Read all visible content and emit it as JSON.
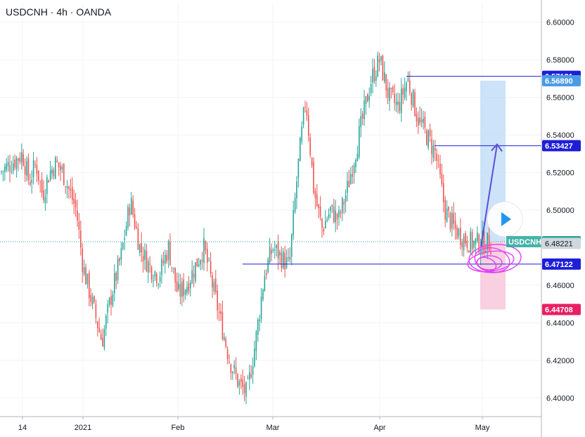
{
  "chart_data": {
    "type": "candlestick",
    "title": "USDCNH · 4h · OANDA",
    "ylim": [
      6.39,
      6.61
    ],
    "y_ticks": [
      "6.60000",
      "6.58000",
      "6.56000",
      "6.54000",
      "6.52000",
      "6.50000",
      "6.46000",
      "6.44000",
      "6.42000",
      "6.40000"
    ],
    "x_ticks": [
      "14",
      "2021",
      "Feb",
      "Mar",
      "Apr",
      "May"
    ],
    "colors": {
      "up": "#26a69a",
      "down": "#ef5350",
      "line": "#1e1ed8",
      "long_target": "#bbd9f7",
      "long_stop": "#f8c4d8",
      "scribble": "#e040fb"
    },
    "close_path": [
      [
        "14",
        6.53
      ],
      [
        "",
        6.515
      ],
      [
        "",
        6.525
      ],
      [
        "",
        6.508
      ],
      [
        "",
        6.52
      ],
      [
        "",
        6.525
      ],
      [
        "",
        6.52
      ],
      [
        "",
        6.51
      ],
      [
        "",
        6.5
      ],
      [
        "2021",
        6.47
      ],
      [
        "",
        6.45
      ],
      [
        "",
        6.43
      ],
      [
        "",
        6.455
      ],
      [
        "",
        6.475
      ],
      [
        "",
        6.505
      ],
      [
        "",
        6.48
      ],
      [
        "",
        6.47
      ],
      [
        "",
        6.465
      ],
      [
        "",
        6.48
      ],
      [
        "Feb",
        6.455
      ],
      [
        "",
        6.46
      ],
      [
        "",
        6.47
      ],
      [
        "",
        6.48
      ],
      [
        "",
        6.46
      ],
      [
        "",
        6.44
      ],
      [
        "",
        6.42
      ],
      [
        "",
        6.408
      ],
      [
        "",
        6.402
      ],
      [
        "",
        6.43
      ],
      [
        "",
        6.465
      ],
      [
        "Mar",
        6.48
      ],
      [
        "",
        6.475
      ],
      [
        "",
        6.47
      ],
      [
        "",
        6.52
      ],
      [
        "",
        6.56
      ],
      [
        "",
        6.51
      ],
      [
        "",
        6.49
      ],
      [
        "",
        6.5
      ],
      [
        "",
        6.495
      ],
      [
        "",
        6.51
      ],
      [
        "",
        6.53
      ],
      [
        "",
        6.55
      ],
      [
        "",
        6.57
      ],
      [
        "Apr",
        6.58
      ],
      [
        "",
        6.56
      ],
      [
        "",
        6.555
      ],
      [
        "",
        6.57
      ],
      [
        "",
        6.55
      ],
      [
        "",
        6.54
      ],
      [
        "",
        6.53
      ],
      [
        "",
        6.5
      ],
      [
        "",
        6.49
      ],
      [
        "",
        6.485
      ],
      [
        "",
        6.482
      ],
      [
        "May",
        6.483
      ]
    ],
    "price_tags": [
      {
        "label": "6.57121",
        "value": 6.57121,
        "color": "#1e1ed8"
      },
      {
        "label": "6.56890",
        "value": 6.5689,
        "color": "#4a9be6"
      },
      {
        "label": "6.53427",
        "value": 6.53427,
        "color": "#1e1ed8"
      },
      {
        "label": "6.48318",
        "value": 6.48318,
        "color": "#26a69a"
      },
      {
        "label": "6.48221",
        "value": 6.48221,
        "color": "#cfd8dc"
      },
      {
        "label": "6.47122",
        "value": 6.47122,
        "color": "#1e1ed8"
      },
      {
        "label": "6.44708",
        "value": 6.44708,
        "color": "#e91e63"
      }
    ],
    "ticker_tag": "USDCNH",
    "hlines": [
      {
        "value": 6.57121,
        "from": "Apr",
        "x_offset": 0.25
      },
      {
        "value": 6.53427,
        "from": "Apr",
        "x_offset": 0.55
      },
      {
        "value": 6.47122,
        "from": "Feb",
        "x_offset": 0.7
      }
    ],
    "position": {
      "entry": 6.48318,
      "target": 6.5689,
      "stop": 6.44708
    }
  }
}
